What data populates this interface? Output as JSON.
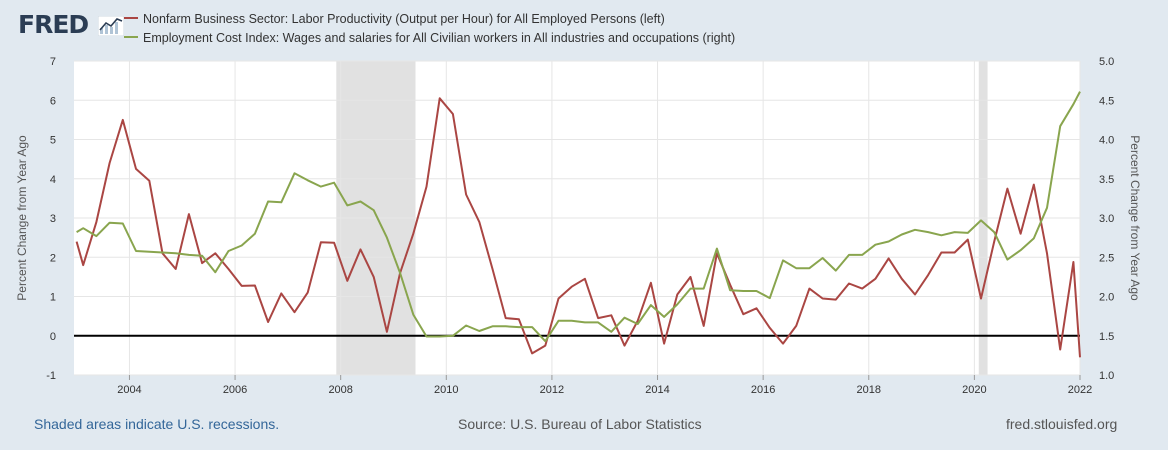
{
  "logo": {
    "text": "FRED",
    "icon": "line-chart-icon"
  },
  "legend": [
    {
      "label": "Nonfarm Business Sector: Labor Productivity (Output per Hour) for All Employed Persons (left)",
      "color": "#aa4643"
    },
    {
      "label": "Employment Cost Index: Wages and salaries for All Civilian workers in All industries and occupations (right)",
      "color": "#89a54e"
    }
  ],
  "footer": {
    "note": "Shaded areas indicate U.S. recessions.",
    "source": "Source: U.S. Bureau of Labor Statistics",
    "url": "fred.stlouisfed.org"
  },
  "chart_data": {
    "type": "line",
    "title": "",
    "xlabel": "",
    "ylabel": "Percent Change from Year Ago",
    "y2label": "Percent Change from Year Ago",
    "xlim": [
      2002.95,
      2022.0
    ],
    "ylim": [
      -1,
      7
    ],
    "y2lim": [
      1.0,
      5.0
    ],
    "x_ticks": [
      "2004",
      "2006",
      "2008",
      "2010",
      "2012",
      "2014",
      "2016",
      "2018",
      "2020",
      "2022"
    ],
    "y_ticks": [
      "-1",
      "0",
      "1",
      "2",
      "3",
      "4",
      "5",
      "6",
      "7"
    ],
    "y2_ticks": [
      "1.0",
      "1.5",
      "2.0",
      "2.5",
      "3.0",
      "3.5",
      "4.0",
      "4.5",
      "5.0"
    ],
    "grid": true,
    "zero_line": 0,
    "recessions": [
      [
        2007.917,
        2009.417
      ],
      [
        2020.083,
        2020.25
      ]
    ],
    "series": [
      {
        "name": "Nonfarm Business Sector: Labor Productivity (Output per Hour) for All Employed Persons (left)",
        "axis": "left",
        "color": "#aa4643",
        "x": [
          2003.0,
          2003.125,
          2003.375,
          2003.625,
          2003.875,
          2004.125,
          2004.375,
          2004.625,
          2004.875,
          2005.125,
          2005.375,
          2005.625,
          2005.875,
          2006.125,
          2006.375,
          2006.625,
          2006.875,
          2007.125,
          2007.375,
          2007.625,
          2007.875,
          2008.125,
          2008.375,
          2008.625,
          2008.875,
          2009.125,
          2009.375,
          2009.625,
          2009.875,
          2010.125,
          2010.375,
          2010.625,
          2010.875,
          2011.125,
          2011.375,
          2011.625,
          2011.875,
          2012.125,
          2012.375,
          2012.625,
          2012.875,
          2013.125,
          2013.375,
          2013.625,
          2013.875,
          2014.125,
          2014.375,
          2014.625,
          2014.875,
          2015.125,
          2015.375,
          2015.625,
          2015.875,
          2016.125,
          2016.375,
          2016.625,
          2016.875,
          2017.125,
          2017.375,
          2017.625,
          2017.875,
          2018.125,
          2018.375,
          2018.625,
          2018.875,
          2019.125,
          2019.375,
          2019.625,
          2019.875,
          2020.125,
          2020.375,
          2020.625,
          2020.875,
          2021.125,
          2021.375,
          2021.625,
          2021.875,
          2022.0
        ],
        "values": [
          2.4,
          1.8,
          2.9,
          4.4,
          5.5,
          4.25,
          3.95,
          2.1,
          1.7,
          3.1,
          1.85,
          2.1,
          1.7,
          1.27,
          1.28,
          0.35,
          1.08,
          0.6,
          1.1,
          2.38,
          2.37,
          1.4,
          2.2,
          1.5,
          0.1,
          1.6,
          2.6,
          3.8,
          6.05,
          5.65,
          3.6,
          2.9,
          1.7,
          0.45,
          0.42,
          -0.45,
          -0.25,
          0.95,
          1.25,
          1.45,
          0.45,
          0.52,
          -0.25,
          0.38,
          1.35,
          -0.2,
          1.05,
          1.5,
          0.25,
          2.1,
          1.3,
          0.55,
          0.7,
          0.2,
          -0.2,
          0.25,
          1.2,
          0.95,
          0.92,
          1.33,
          1.2,
          1.45,
          1.97,
          1.45,
          1.05,
          1.55,
          2.12,
          2.12,
          2.45,
          0.95,
          2.4,
          3.75,
          2.6,
          3.85,
          2.1,
          -0.35,
          1.88,
          -0.55
        ]
      },
      {
        "name": "Employment Cost Index: Wages and salaries for All Civilian workers in All industries and occupations (right)",
        "axis": "right",
        "color": "#89a54e",
        "x": [
          2003.0,
          2003.125,
          2003.375,
          2003.625,
          2003.875,
          2004.125,
          2004.375,
          2004.625,
          2004.875,
          2005.125,
          2005.375,
          2005.625,
          2005.875,
          2006.125,
          2006.375,
          2006.625,
          2006.875,
          2007.125,
          2007.375,
          2007.625,
          2007.875,
          2008.125,
          2008.375,
          2008.625,
          2008.875,
          2009.125,
          2009.375,
          2009.625,
          2009.875,
          2010.125,
          2010.375,
          2010.625,
          2010.875,
          2011.125,
          2011.375,
          2011.625,
          2011.875,
          2012.125,
          2012.375,
          2012.625,
          2012.875,
          2013.125,
          2013.375,
          2013.625,
          2013.875,
          2014.125,
          2014.375,
          2014.625,
          2014.875,
          2015.125,
          2015.375,
          2015.625,
          2015.875,
          2016.125,
          2016.375,
          2016.625,
          2016.875,
          2017.125,
          2017.375,
          2017.625,
          2017.875,
          2018.125,
          2018.375,
          2018.625,
          2018.875,
          2019.125,
          2019.375,
          2019.625,
          2019.875,
          2020.125,
          2020.375,
          2020.625,
          2020.875,
          2021.125,
          2021.375,
          2021.625,
          2021.875,
          2022.0
        ],
        "values": [
          2.82,
          2.87,
          2.77,
          2.94,
          2.93,
          2.58,
          2.57,
          2.56,
          2.55,
          2.53,
          2.52,
          2.31,
          2.58,
          2.65,
          2.8,
          3.21,
          3.2,
          3.57,
          3.48,
          3.4,
          3.45,
          3.16,
          3.21,
          3.1,
          2.75,
          2.3,
          1.77,
          1.49,
          1.49,
          1.5,
          1.63,
          1.56,
          1.62,
          1.62,
          1.61,
          1.61,
          1.43,
          1.69,
          1.69,
          1.67,
          1.67,
          1.55,
          1.73,
          1.65,
          1.89,
          1.74,
          1.9,
          2.1,
          2.1,
          2.61,
          2.08,
          2.07,
          2.07,
          1.98,
          2.46,
          2.36,
          2.36,
          2.49,
          2.33,
          2.53,
          2.53,
          2.66,
          2.7,
          2.79,
          2.85,
          2.82,
          2.78,
          2.82,
          2.81,
          2.97,
          2.82,
          2.47,
          2.59,
          2.74,
          3.13,
          4.17,
          4.45,
          4.61
        ]
      }
    ]
  }
}
